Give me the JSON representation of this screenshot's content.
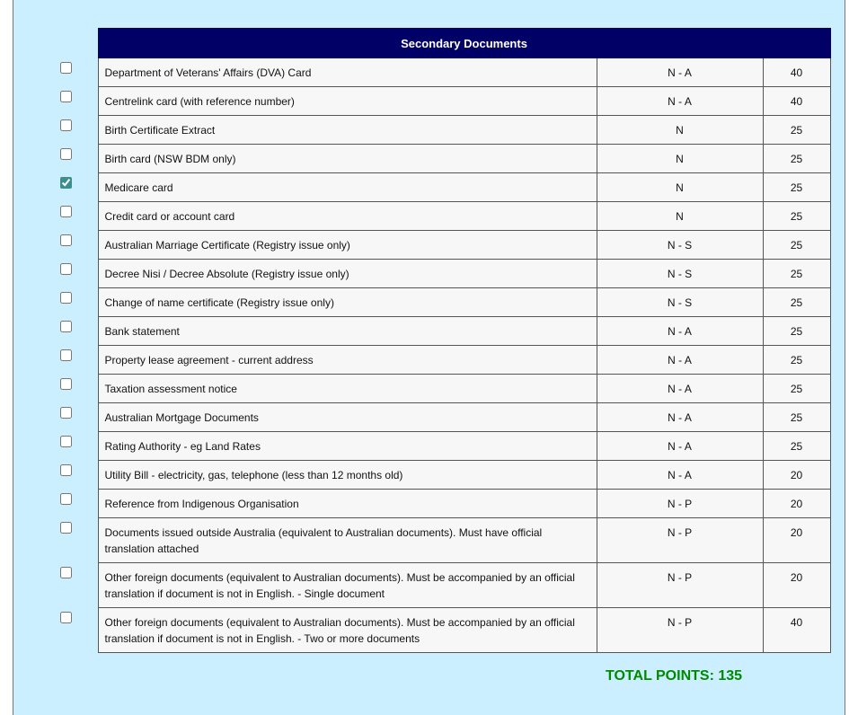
{
  "table": {
    "title": "Secondary Documents",
    "rows": [
      {
        "label": "Department of Veterans' Affairs (DVA) Card",
        "code": "N - A",
        "points": 40,
        "checked": false
      },
      {
        "label": "Centrelink card (with reference number)",
        "code": "N - A",
        "points": 40,
        "checked": false
      },
      {
        "label": "Birth Certificate Extract",
        "code": "N",
        "points": 25,
        "checked": false
      },
      {
        "label": "Birth card (NSW BDM only)",
        "code": "N",
        "points": 25,
        "checked": false
      },
      {
        "label": "Medicare card",
        "code": "N",
        "points": 25,
        "checked": true
      },
      {
        "label": "Credit card or account card",
        "code": "N",
        "points": 25,
        "checked": false
      },
      {
        "label": "Australian Marriage Certificate (Registry issue only)",
        "code": "N - S",
        "points": 25,
        "checked": false
      },
      {
        "label": "Decree Nisi / Decree Absolute (Registry issue only)",
        "code": "N - S",
        "points": 25,
        "checked": false
      },
      {
        "label": "Change of name certificate (Registry issue only)",
        "code": "N - S",
        "points": 25,
        "checked": false
      },
      {
        "label": "Bank statement",
        "code": "N - A",
        "points": 25,
        "checked": false
      },
      {
        "label": "Property lease agreement - current address",
        "code": "N - A",
        "points": 25,
        "checked": false
      },
      {
        "label": "Taxation assessment notice",
        "code": "N - A",
        "points": 25,
        "checked": false
      },
      {
        "label": "Australian Mortgage Documents",
        "code": "N - A",
        "points": 25,
        "checked": false
      },
      {
        "label": "Rating Authority - eg Land Rates",
        "code": "N - A",
        "points": 25,
        "checked": false
      },
      {
        "label": "Utility Bill - electricity, gas, telephone (less than 12 months old)",
        "code": "N - A",
        "points": 20,
        "checked": false
      },
      {
        "label": "Reference from Indigenous Organisation",
        "code": "N - P",
        "points": 20,
        "checked": false
      },
      {
        "label": "Documents issued outside Australia (equivalent to Australian documents). Must have official translation attached",
        "code": "N - P",
        "points": 20,
        "checked": false
      },
      {
        "label": "Other foreign documents (equivalent to Australian documents). Must be accompanied by an official translation if document is not in English. - Single document",
        "code": "N - P",
        "points": 20,
        "checked": false
      },
      {
        "label": "Other foreign documents (equivalent to Australian documents). Must be accompanied by an official translation if document is not in English. - Two or more documents",
        "code": "N - P",
        "points": 40,
        "checked": false
      }
    ]
  },
  "total": "TOTAL POINTS: 135"
}
